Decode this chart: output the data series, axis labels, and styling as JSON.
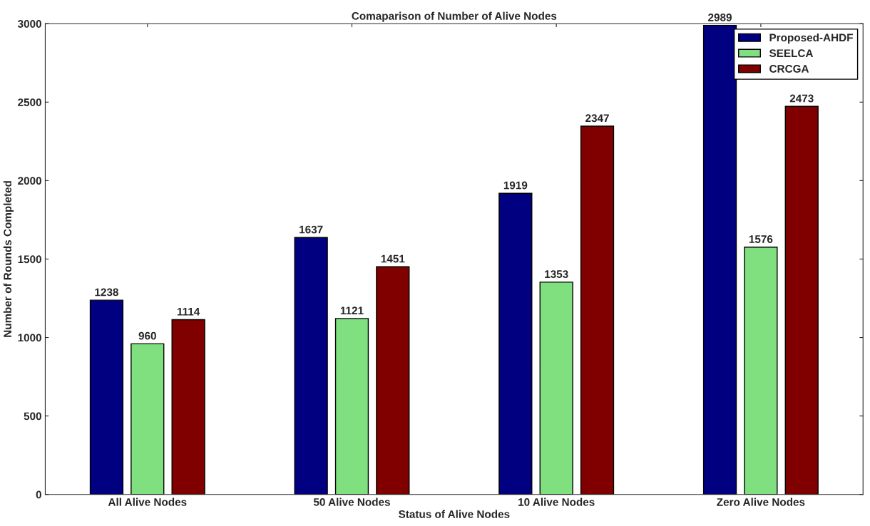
{
  "chart_data": {
    "type": "bar",
    "title": "Comaparison of Number of Alive Nodes",
    "xlabel": "Status of Alive Nodes",
    "ylabel": "Number of Rounds Completed",
    "categories": [
      "All Alive Nodes",
      "50 Alive Nodes",
      "10 Alive Nodes",
      "Zero Alive Nodes"
    ],
    "series": [
      {
        "name": "Proposed-AHDF",
        "color": "#000080",
        "values": [
          1238,
          1637,
          1919,
          2989
        ]
      },
      {
        "name": "SEELCA",
        "color": "#80e080",
        "values": [
          960,
          1121,
          1353,
          1576
        ]
      },
      {
        "name": "CRCGA",
        "color": "#800000",
        "values": [
          1114,
          1451,
          2347,
          2473
        ]
      }
    ],
    "ylim": [
      0,
      3000
    ],
    "yticks": [
      0,
      500,
      1000,
      1500,
      2000,
      2500,
      3000
    ],
    "grid": false,
    "legend": "top right",
    "data_labels": true
  }
}
